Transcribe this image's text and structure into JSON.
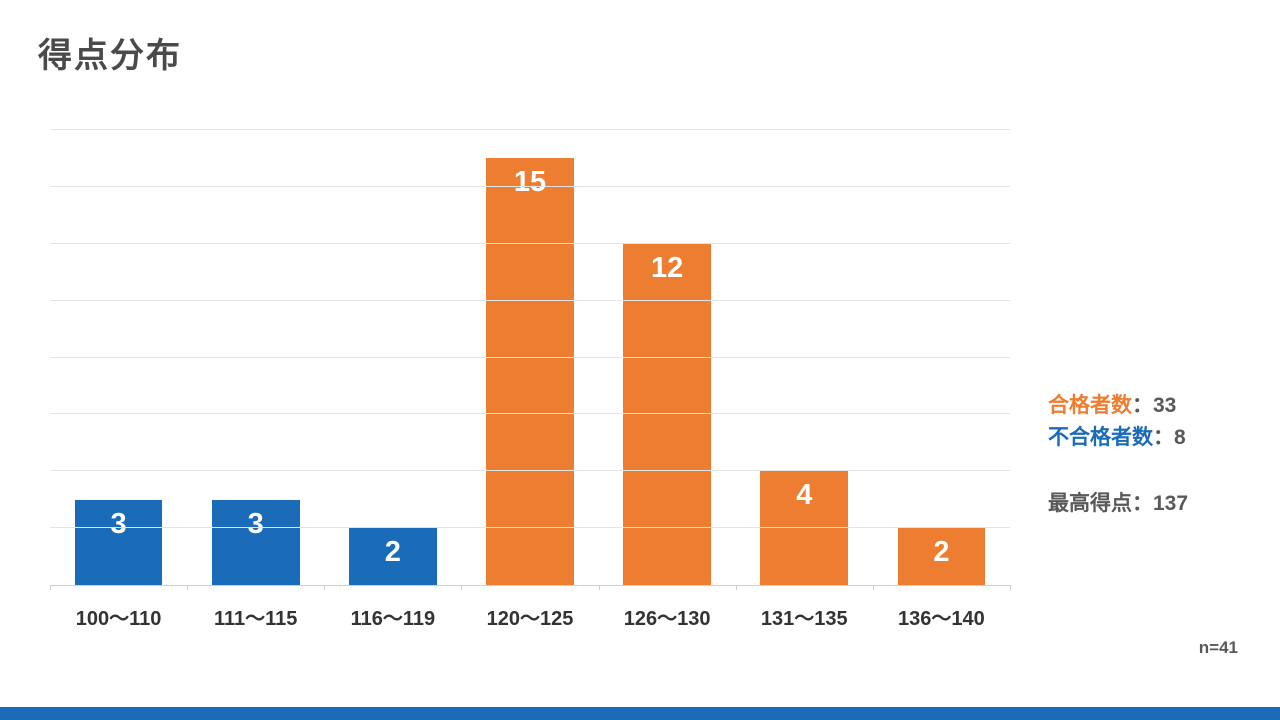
{
  "slide": {
    "title": "得点分布",
    "footer_note": "n=41"
  },
  "stats": {
    "pass_label": "合格者数",
    "pass_value_text": "：33",
    "fail_label": "不合格者数",
    "fail_value_text": "：8",
    "max_label": "最高得点",
    "max_value_text": "：137"
  },
  "colors": {
    "bar_blue": "#1a6bb8",
    "bar_orange": "#ed7d31",
    "footer_accent": "#1a6bb8",
    "pass_label_color": "#ed7d31",
    "fail_label_color": "#1a6bb8",
    "gray_text": "#595959"
  },
  "chart_data": {
    "type": "bar",
    "title": "得点分布",
    "categories": [
      "100〜110",
      "111〜115",
      "116〜119",
      "120〜125",
      "126〜130",
      "131〜135",
      "136〜140"
    ],
    "values": [
      3,
      3,
      2,
      15,
      12,
      4,
      2
    ],
    "bar_color_keys": [
      "bar_blue",
      "bar_blue",
      "bar_blue",
      "bar_orange",
      "bar_orange",
      "bar_orange",
      "bar_orange"
    ],
    "xlabel": "",
    "ylabel": "",
    "ylim": [
      0,
      16
    ],
    "gridline_step": 2,
    "grid": true,
    "data_labels": true,
    "legend_position": "none",
    "annotations": [
      "合格者数：33",
      "不合格者数：8",
      "最高得点：137",
      "n=41"
    ]
  }
}
